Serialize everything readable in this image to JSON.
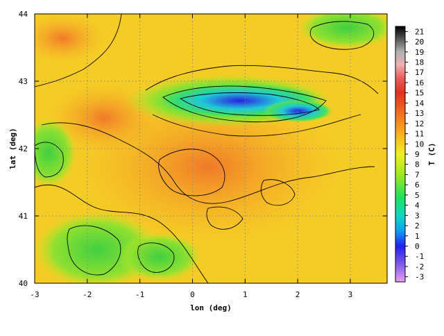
{
  "map": {
    "xlabel": "lon (deg)",
    "ylabel": "lat (deg)",
    "x_ticks": [
      "-3",
      "-2",
      "-1",
      "0",
      "1",
      "2",
      "3"
    ],
    "y_ticks": [
      "40",
      "41",
      "42",
      "43",
      "44"
    ],
    "xlim": [
      -3,
      3.7
    ],
    "ylim": [
      40,
      44
    ],
    "grid": true
  },
  "colorbar": {
    "label": "T (C)",
    "ticks": [
      "21",
      "20",
      "19",
      "18",
      "17",
      "16",
      "15",
      "14",
      "13",
      "12",
      "11",
      "10",
      "9",
      "8",
      "7",
      "6",
      "5",
      "4",
      "3",
      "2",
      "1",
      "0",
      "-1",
      "-2",
      "-3"
    ],
    "range": [
      -3,
      21
    ],
    "colors": [
      "#e8a0f0",
      "#a060e8",
      "#6040e0",
      "#2020f0",
      "#1060f0",
      "#10a0f0",
      "#10d0d0",
      "#10e090",
      "#30e040",
      "#80e020",
      "#b0e820",
      "#e0f020",
      "#f8e820",
      "#f8c020",
      "#f8a020",
      "#f08020",
      "#e86020",
      "#e04020",
      "#d82020",
      "#e85050",
      "#f0a0a0",
      "#c0c0c0",
      "#808080",
      "#404040",
      "#000000"
    ]
  }
}
